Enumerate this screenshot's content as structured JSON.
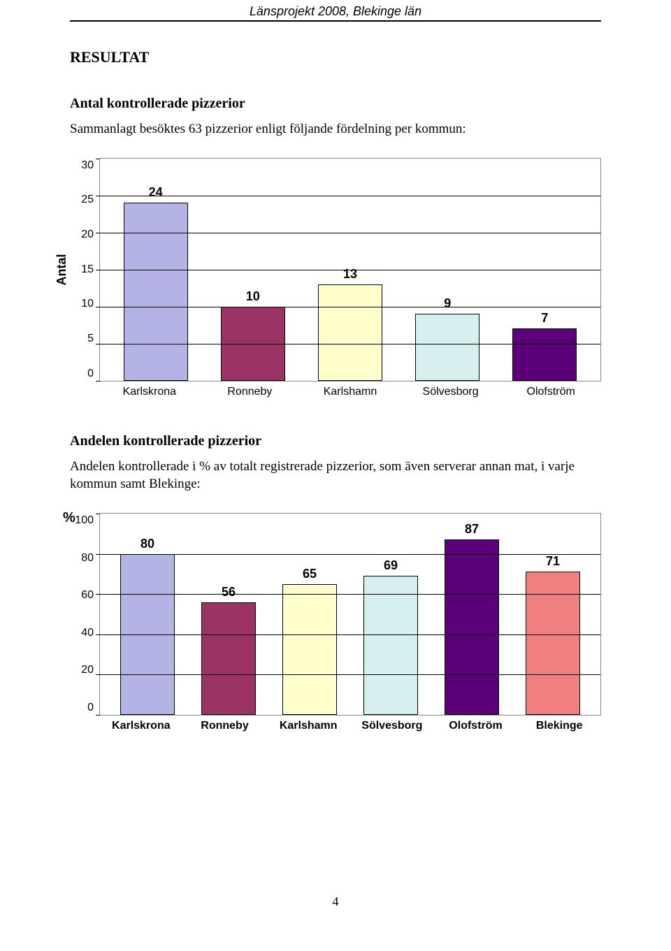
{
  "header": {
    "title": "Länsprojekt 2008, Blekinge län"
  },
  "section_title": "RESULTAT",
  "chart1": {
    "heading": "Antal kontrollerade pizzerior",
    "lead_text": "Sammanlagt besöktes 63 pizzerior enligt följande fördelning per kommun:",
    "type": "bar",
    "y_label": "Antal",
    "y_max": 30,
    "y_ticks": [
      "30",
      "25",
      "20",
      "15",
      "10",
      "5",
      "0"
    ],
    "categories": [
      "Karlskrona",
      "Ronneby",
      "Karlshamn",
      "Sölvesborg",
      "Olofström"
    ],
    "values": [
      24,
      10,
      13,
      9,
      7
    ],
    "bar_colors": [
      "#b3b3e6",
      "#9b3366",
      "#ffffcc",
      "#d6f0f0",
      "#5c007a"
    ],
    "grid_color": "#000000",
    "background_color": "#ffffff",
    "value_label_fontsize": 18,
    "axis_font": "Arial"
  },
  "chart2": {
    "heading": "Andelen kontrollerade pizzerior",
    "lead_text": "Andelen kontrollerade i % av totalt registrerade pizzerior, som även serverar annan mat, i varje kommun samt Blekinge:",
    "type": "bar",
    "y_label": "%",
    "y_max": 100,
    "y_ticks": [
      "100",
      "80",
      "60",
      "40",
      "20",
      "0"
    ],
    "categories": [
      "Karlskrona",
      "Ronneby",
      "Karlshamn",
      "Sölvesborg",
      "Olofström",
      "Blekinge"
    ],
    "values": [
      80,
      56,
      65,
      69,
      87,
      71
    ],
    "bar_colors": [
      "#b3b3e6",
      "#9b3366",
      "#ffffcc",
      "#d6f0f0",
      "#5c007a",
      "#f08080"
    ],
    "grid_color": "#000000",
    "background_color": "#ffffff",
    "value_label_fontsize": 18,
    "axis_font": "Arial"
  },
  "page_number": "4"
}
